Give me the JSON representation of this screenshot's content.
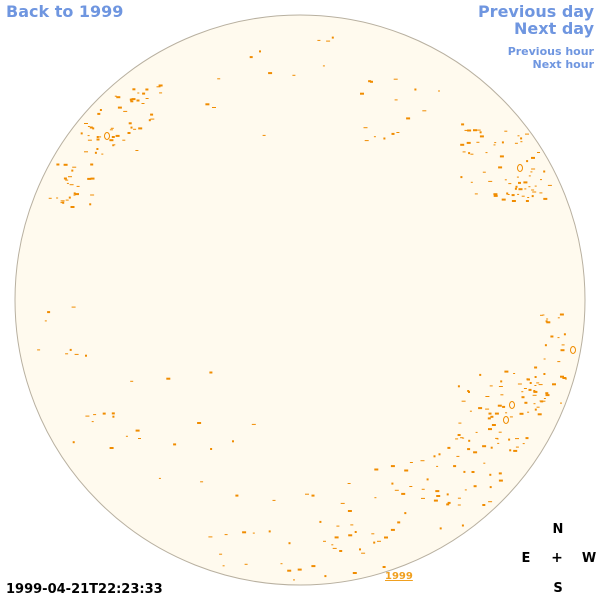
{
  "nav": {
    "back": "Back to 1999",
    "previous_day": "Previous day",
    "next_day": "Next day",
    "previous_hour": "Previous hour",
    "next_hour": "Next hour"
  },
  "disk": {
    "fill_color": "#fffaee",
    "border_color": "#b8b0a0",
    "feature_color": "#f08c00"
  },
  "compass": {
    "north": "N",
    "east": "E",
    "center": "+",
    "west": "W",
    "south": "S"
  },
  "timestamp": "1999-04-21T22:23:33",
  "year_link": "1999"
}
